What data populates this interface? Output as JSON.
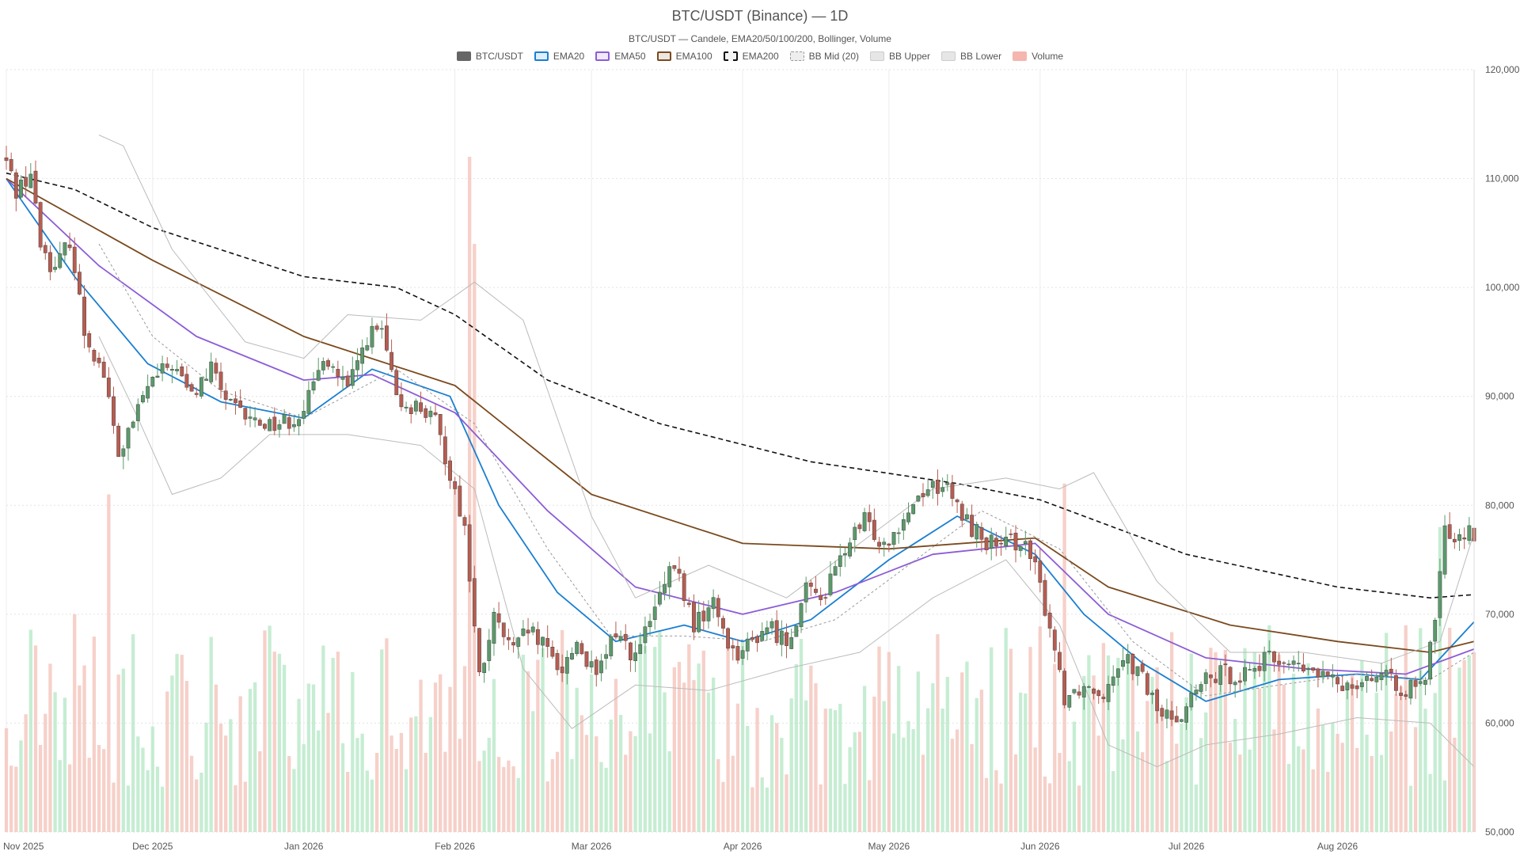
{
  "header": {
    "title": "BTC/USDT (Binance) — 1D",
    "subtitle": "BTC/USDT — Candele, EMA20/50/100/200, Bollinger, Volume"
  },
  "legend": [
    {
      "label": "BTC/USDT",
      "color": "#666666",
      "style": "fill"
    },
    {
      "label": "EMA20",
      "color": "#1a7fd1",
      "style": "line"
    },
    {
      "label": "EMA50",
      "color": "#8c5cd6",
      "style": "line"
    },
    {
      "label": "EMA100",
      "color": "#7a4a1e",
      "style": "line"
    },
    {
      "label": "EMA200",
      "color": "#111111",
      "style": "dashed"
    },
    {
      "label": "BB Mid (20)",
      "color": "#999999",
      "style": "dotted"
    },
    {
      "label": "BB Upper",
      "color": "#bbbbbb",
      "style": "line"
    },
    {
      "label": "BB Lower",
      "color": "#bbbbbb",
      "style": "line"
    },
    {
      "label": "Volume",
      "color": "#f4b6ae",
      "style": "fill"
    }
  ],
  "colors": {
    "up": "#5a9a6a",
    "down": "#b85c50",
    "volume_up": "#b8e8c8",
    "volume_down": "#f4c4bc",
    "grid": "#e6e6e6"
  },
  "chart_data": {
    "type": "candlestick",
    "title": "BTC/USDT (Binance) — 1D",
    "subtitle": "BTC/USDT — Candele, EMA20/50/100/200, Bollinger, Volume",
    "x_axis": {
      "type": "date",
      "start": "2025-11-01",
      "end": "2026-08-29",
      "ticks": [
        "Nov 2025",
        "Dec 2025",
        "Jan 2026",
        "Feb 2026",
        "Mar 2026",
        "Apr 2026",
        "May 2026",
        "Jun 2026",
        "Jul 2026",
        "Aug 2026"
      ]
    },
    "y_axis": {
      "position": "right",
      "ylim": [
        50000,
        120000
      ],
      "ticks": [
        "50,000",
        "60,000",
        "70,000",
        "80,000",
        "90,000",
        "100,000",
        "110,000",
        "120,000"
      ]
    },
    "grid": true,
    "legend_position": "top-center",
    "price_path": [
      [
        "2025-11-01",
        111500
      ],
      [
        "2025-11-03",
        109000
      ],
      [
        "2025-11-06",
        110500
      ],
      [
        "2025-11-08",
        104000
      ],
      [
        "2025-11-11",
        101500
      ],
      [
        "2025-11-14",
        104500
      ],
      [
        "2025-11-17",
        96000
      ],
      [
        "2025-11-21",
        92000
      ],
      [
        "2025-11-24",
        84500
      ],
      [
        "2025-11-27",
        87500
      ],
      [
        "2025-11-30",
        91000
      ],
      [
        "2025-12-05",
        93000
      ],
      [
        "2025-12-09",
        90000
      ],
      [
        "2025-12-13",
        92500
      ],
      [
        "2025-12-17",
        89000
      ],
      [
        "2025-12-21",
        87800
      ],
      [
        "2025-12-26",
        87500
      ],
      [
        "2025-12-30",
        88000
      ],
      [
        "2026-01-03",
        90500
      ],
      [
        "2026-01-05",
        94000
      ],
      [
        "2026-01-10",
        90500
      ],
      [
        "2026-01-14",
        95500
      ],
      [
        "2026-01-17",
        96000
      ],
      [
        "2026-01-20",
        89500
      ],
      [
        "2026-01-25",
        89000
      ],
      [
        "2026-01-28",
        87500
      ],
      [
        "2026-01-31",
        83000
      ],
      [
        "2026-02-03",
        78000
      ],
      [
        "2026-02-06",
        64000
      ],
      [
        "2026-02-09",
        69500
      ],
      [
        "2026-02-13",
        66500
      ],
      [
        "2026-02-16",
        68500
      ],
      [
        "2026-02-19",
        67000
      ],
      [
        "2026-02-23",
        65000
      ],
      [
        "2026-02-26",
        67500
      ],
      [
        "2026-03-02",
        64000
      ],
      [
        "2026-03-06",
        68500
      ],
      [
        "2026-03-10",
        66000
      ],
      [
        "2026-03-15",
        71500
      ],
      [
        "2026-03-18",
        74500
      ],
      [
        "2026-03-22",
        69000
      ],
      [
        "2026-03-26",
        71000
      ],
      [
        "2026-03-30",
        66500
      ],
      [
        "2026-04-02",
        67000
      ],
      [
        "2026-04-06",
        69000
      ],
      [
        "2026-04-10",
        67500
      ],
      [
        "2026-04-14",
        72000
      ],
      [
        "2026-04-18",
        72000
      ],
      [
        "2026-04-22",
        76000
      ],
      [
        "2026-04-26",
        78500
      ],
      [
        "2026-04-30",
        76500
      ],
      [
        "2026-05-04",
        79000
      ],
      [
        "2026-05-08",
        81500
      ],
      [
        "2026-05-12",
        82000
      ],
      [
        "2026-05-16",
        79000
      ],
      [
        "2026-05-20",
        77000
      ],
      [
        "2026-05-24",
        76000
      ],
      [
        "2026-05-28",
        77000
      ],
      [
        "2026-05-31",
        74000
      ],
      [
        "2026-06-03",
        69000
      ],
      [
        "2026-06-06",
        62500
      ],
      [
        "2026-06-10",
        63500
      ],
      [
        "2026-06-14",
        63000
      ],
      [
        "2026-06-18",
        66500
      ],
      [
        "2026-06-22",
        64000
      ],
      [
        "2026-06-26",
        60500
      ],
      [
        "2026-06-30",
        61000
      ],
      [
        "2026-07-04",
        63500
      ],
      [
        "2026-07-08",
        64500
      ],
      [
        "2026-07-12",
        64500
      ],
      [
        "2026-07-16",
        65500
      ],
      [
        "2026-07-20",
        66000
      ],
      [
        "2026-07-24",
        65000
      ],
      [
        "2026-07-28",
        64500
      ],
      [
        "2026-08-01",
        63500
      ],
      [
        "2026-08-05",
        64000
      ],
      [
        "2026-08-09",
        64500
      ],
      [
        "2026-08-13",
        63500
      ],
      [
        "2026-08-17",
        63000
      ],
      [
        "2026-08-19",
        63500
      ],
      [
        "2026-08-21",
        70000
      ],
      [
        "2026-08-23",
        77500
      ],
      [
        "2026-08-26",
        77500
      ],
      [
        "2026-08-29",
        77500
      ]
    ],
    "series": [
      {
        "name": "EMA20",
        "color": "#1a7fd1",
        "points": [
          [
            "2025-11-01",
            110000
          ],
          [
            "2025-11-15",
            101000
          ],
          [
            "2025-11-30",
            93000
          ],
          [
            "2025-12-15",
            89500
          ],
          [
            "2026-01-01",
            88000
          ],
          [
            "2026-01-15",
            92500
          ],
          [
            "2026-01-31",
            90000
          ],
          [
            "2026-02-10",
            80000
          ],
          [
            "2026-02-22",
            72000
          ],
          [
            "2026-03-06",
            67500
          ],
          [
            "2026-03-20",
            69000
          ],
          [
            "2026-04-01",
            67500
          ],
          [
            "2026-04-15",
            69500
          ],
          [
            "2026-05-01",
            75000
          ],
          [
            "2026-05-15",
            79000
          ],
          [
            "2026-05-31",
            75500
          ],
          [
            "2026-06-10",
            70000
          ],
          [
            "2026-06-22",
            65500
          ],
          [
            "2026-07-05",
            62000
          ],
          [
            "2026-07-20",
            64000
          ],
          [
            "2026-08-05",
            64500
          ],
          [
            "2026-08-18",
            64000
          ],
          [
            "2026-08-29",
            69300
          ]
        ]
      },
      {
        "name": "EMA50",
        "color": "#8c5cd6",
        "points": [
          [
            "2025-11-01",
            110000
          ],
          [
            "2025-11-20",
            102000
          ],
          [
            "2025-12-10",
            95500
          ],
          [
            "2026-01-01",
            91500
          ],
          [
            "2026-01-15",
            92000
          ],
          [
            "2026-02-01",
            88500
          ],
          [
            "2026-02-20",
            79500
          ],
          [
            "2026-03-10",
            72500
          ],
          [
            "2026-04-01",
            70000
          ],
          [
            "2026-04-20",
            72000
          ],
          [
            "2026-05-10",
            75500
          ],
          [
            "2026-05-31",
            76500
          ],
          [
            "2026-06-15",
            70000
          ],
          [
            "2026-07-05",
            66000
          ],
          [
            "2026-07-25",
            65000
          ],
          [
            "2026-08-15",
            64500
          ],
          [
            "2026-08-29",
            66800
          ]
        ]
      },
      {
        "name": "EMA100",
        "color": "#7a4a1e",
        "points": [
          [
            "2025-11-01",
            110000
          ],
          [
            "2025-12-01",
            102500
          ],
          [
            "2026-01-01",
            95500
          ],
          [
            "2026-02-01",
            91000
          ],
          [
            "2026-03-01",
            81000
          ],
          [
            "2026-04-01",
            76500
          ],
          [
            "2026-05-01",
            76000
          ],
          [
            "2026-05-31",
            77000
          ],
          [
            "2026-06-15",
            72500
          ],
          [
            "2026-07-10",
            69000
          ],
          [
            "2026-08-01",
            67500
          ],
          [
            "2026-08-20",
            66500
          ],
          [
            "2026-08-29",
            67500
          ]
        ]
      },
      {
        "name": "EMA200",
        "color": "#111111",
        "dash": "6,4",
        "points": [
          [
            "2025-11-01",
            110500
          ],
          [
            "2025-11-15",
            109000
          ],
          [
            "2025-12-01",
            105500
          ],
          [
            "2026-01-01",
            101000
          ],
          [
            "2026-01-20",
            100000
          ],
          [
            "2026-02-01",
            97500
          ],
          [
            "2026-02-20",
            91500
          ],
          [
            "2026-03-15",
            87500
          ],
          [
            "2026-04-15",
            84000
          ],
          [
            "2026-05-15",
            82000
          ],
          [
            "2026-06-01",
            80500
          ],
          [
            "2026-07-01",
            75500
          ],
          [
            "2026-08-01",
            72500
          ],
          [
            "2026-08-20",
            71500
          ],
          [
            "2026-08-29",
            71800
          ]
        ]
      },
      {
        "name": "BB Mid (20)",
        "color": "#999999",
        "dash": "3,3",
        "points": [
          [
            "2025-11-20",
            104000
          ],
          [
            "2025-12-01",
            95500
          ],
          [
            "2025-12-15",
            90500
          ],
          [
            "2026-01-01",
            88000
          ],
          [
            "2026-01-20",
            92500
          ],
          [
            "2026-02-05",
            87500
          ],
          [
            "2026-02-20",
            76000
          ],
          [
            "2026-03-05",
            68000
          ],
          [
            "2026-03-20",
            68000
          ],
          [
            "2026-04-05",
            67500
          ],
          [
            "2026-04-20",
            69500
          ],
          [
            "2026-05-05",
            74500
          ],
          [
            "2026-05-20",
            79500
          ],
          [
            "2026-06-05",
            76000
          ],
          [
            "2026-06-20",
            67500
          ],
          [
            "2026-07-05",
            62500
          ],
          [
            "2026-07-20",
            63500
          ],
          [
            "2026-08-05",
            64500
          ],
          [
            "2026-08-20",
            64000
          ],
          [
            "2026-08-29",
            66500
          ]
        ]
      },
      {
        "name": "BB Upper",
        "color": "#bbbbbb",
        "points": [
          [
            "2025-11-20",
            114000
          ],
          [
            "2025-11-25",
            113000
          ],
          [
            "2025-12-05",
            103500
          ],
          [
            "2025-12-20",
            95000
          ],
          [
            "2026-01-01",
            93500
          ],
          [
            "2026-01-10",
            97500
          ],
          [
            "2026-01-25",
            97000
          ],
          [
            "2026-02-05",
            100500
          ],
          [
            "2026-02-15",
            97000
          ],
          [
            "2026-03-01",
            79000
          ],
          [
            "2026-03-10",
            71500
          ],
          [
            "2026-03-25",
            74500
          ],
          [
            "2026-04-10",
            71500
          ],
          [
            "2026-04-25",
            76500
          ],
          [
            "2026-05-10",
            81500
          ],
          [
            "2026-05-25",
            82500
          ],
          [
            "2026-06-05",
            81500
          ],
          [
            "2026-06-12",
            83000
          ],
          [
            "2026-06-25",
            73000
          ],
          [
            "2026-07-10",
            66500
          ],
          [
            "2026-07-25",
            66500
          ],
          [
            "2026-08-10",
            65500
          ],
          [
            "2026-08-22",
            67500
          ],
          [
            "2026-08-29",
            77500
          ]
        ]
      },
      {
        "name": "BB Lower",
        "color": "#bbbbbb",
        "points": [
          [
            "2025-11-20",
            95500
          ],
          [
            "2025-11-28",
            88000
          ],
          [
            "2025-12-05",
            81000
          ],
          [
            "2025-12-15",
            82500
          ],
          [
            "2025-12-25",
            86500
          ],
          [
            "2026-01-10",
            86500
          ],
          [
            "2026-01-25",
            85500
          ],
          [
            "2026-02-05",
            81500
          ],
          [
            "2026-02-15",
            65000
          ],
          [
            "2026-02-25",
            59500
          ],
          [
            "2026-03-10",
            63500
          ],
          [
            "2026-03-25",
            63000
          ],
          [
            "2026-04-10",
            65000
          ],
          [
            "2026-04-25",
            66500
          ],
          [
            "2026-05-10",
            71500
          ],
          [
            "2026-05-25",
            75000
          ],
          [
            "2026-06-05",
            69000
          ],
          [
            "2026-06-15",
            58000
          ],
          [
            "2026-06-25",
            56000
          ],
          [
            "2026-07-05",
            58000
          ],
          [
            "2026-07-20",
            59000
          ],
          [
            "2026-08-05",
            60500
          ],
          [
            "2026-08-20",
            60000
          ],
          [
            "2026-08-29",
            56000
          ]
        ]
      }
    ],
    "volume_spikes": [
      [
        "2025-11-03",
        56000
      ],
      [
        "2025-11-08",
        58000
      ],
      [
        "2025-11-15",
        70000
      ],
      [
        "2025-11-22",
        81000
      ],
      [
        "2025-11-25",
        65000
      ],
      [
        "2026-02-01",
        82000
      ],
      [
        "2026-02-04",
        112000
      ],
      [
        "2026-02-05",
        104000
      ],
      [
        "2026-06-06",
        82000
      ],
      [
        "2026-06-17",
        66000
      ],
      [
        "2026-08-22",
        78000
      ]
    ]
  }
}
